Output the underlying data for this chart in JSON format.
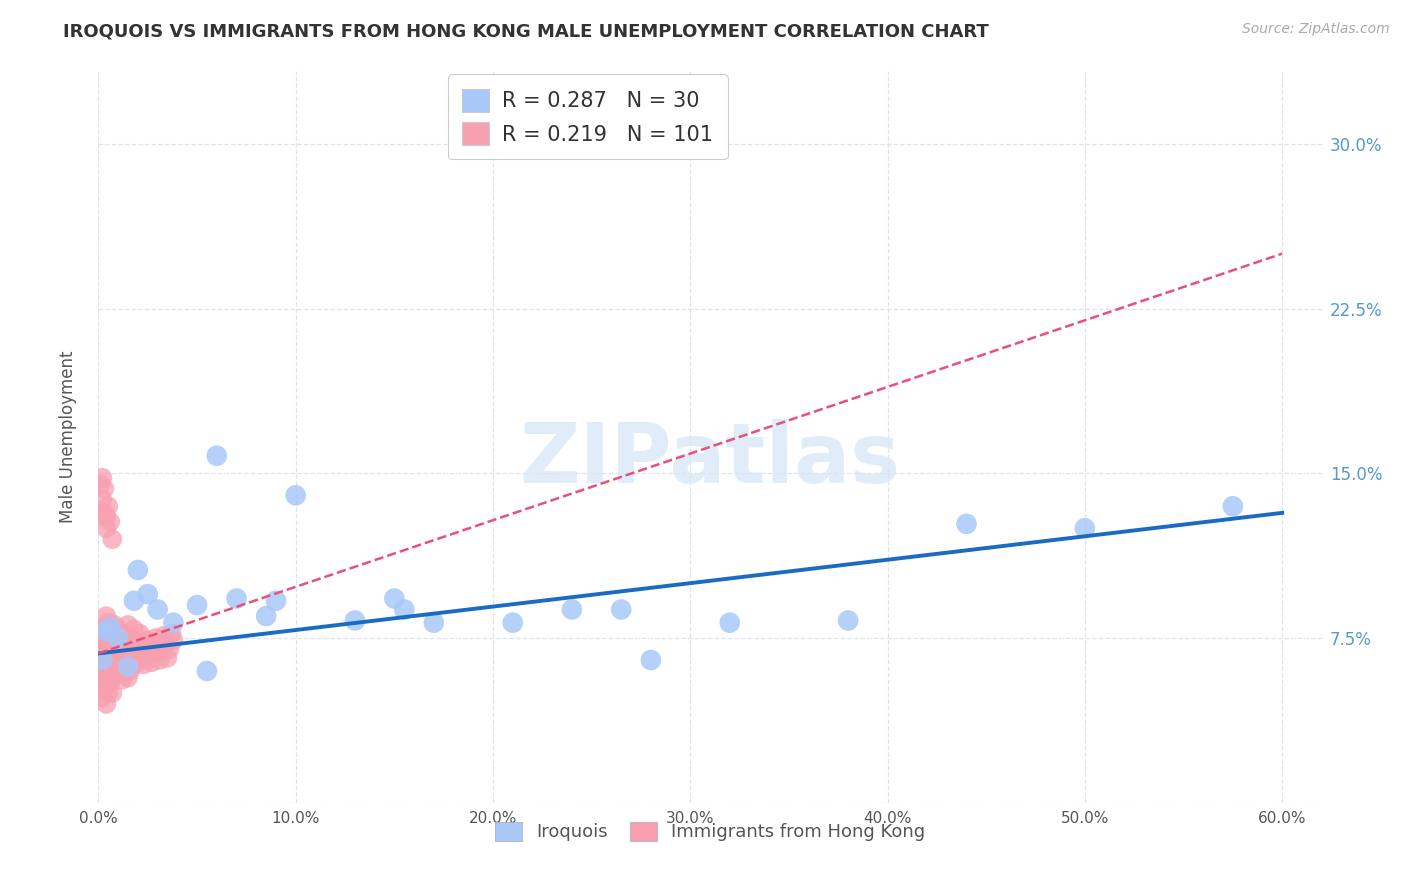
{
  "title": "IROQUOIS VS IMMIGRANTS FROM HONG KONG MALE UNEMPLOYMENT CORRELATION CHART",
  "source": "Source: ZipAtlas.com",
  "ylabel": "Male Unemployment",
  "iroquois_R": 0.287,
  "iroquois_N": 30,
  "hk_R": 0.219,
  "hk_N": 101,
  "iroquois_color": "#a8c8f8",
  "hk_color": "#f8a0b0",
  "iroquois_line_color": "#1a6bc4",
  "hk_line_color": "#e8507a",
  "watermark_color": "#c8dff5",
  "background_color": "#ffffff",
  "grid_color": "#dde4ee",
  "irq_x": [
    0.002,
    0.004,
    0.006,
    0.01,
    0.015,
    0.018,
    0.025,
    0.03,
    0.038,
    0.05,
    0.06,
    0.07,
    0.085,
    0.1,
    0.13,
    0.15,
    0.17,
    0.21,
    0.24,
    0.28,
    0.155,
    0.32,
    0.38,
    0.44,
    0.5,
    0.575,
    0.02,
    0.09,
    0.265,
    0.055
  ],
  "irq_y": [
    0.065,
    0.078,
    0.08,
    0.075,
    0.062,
    0.092,
    0.095,
    0.088,
    0.082,
    0.09,
    0.158,
    0.093,
    0.085,
    0.14,
    0.083,
    0.093,
    0.082,
    0.082,
    0.088,
    0.065,
    0.088,
    0.082,
    0.083,
    0.127,
    0.125,
    0.135,
    0.106,
    0.092,
    0.088,
    0.06
  ],
  "hk_x_tight": [
    0.001,
    0.001,
    0.001,
    0.002,
    0.002,
    0.002,
    0.003,
    0.003,
    0.003,
    0.003,
    0.004,
    0.004,
    0.004,
    0.004,
    0.005,
    0.005,
    0.005,
    0.005,
    0.006,
    0.006,
    0.006,
    0.007,
    0.007,
    0.007,
    0.008,
    0.008,
    0.008,
    0.009,
    0.009,
    0.01,
    0.01,
    0.01,
    0.011,
    0.011,
    0.012,
    0.012,
    0.013,
    0.013,
    0.014,
    0.015,
    0.015,
    0.016,
    0.016,
    0.017,
    0.018,
    0.018,
    0.019,
    0.02,
    0.02,
    0.021,
    0.002,
    0.003,
    0.004,
    0.005,
    0.006,
    0.007,
    0.001,
    0.002,
    0.003,
    0.004,
    0.001,
    0.002,
    0.002,
    0.003,
    0.003,
    0.004,
    0.005,
    0.005,
    0.006,
    0.007,
    0.008,
    0.009,
    0.01,
    0.011,
    0.012,
    0.013,
    0.014,
    0.015,
    0.016,
    0.017,
    0.018,
    0.019,
    0.02,
    0.021,
    0.022,
    0.023,
    0.024,
    0.025,
    0.026,
    0.027,
    0.028,
    0.029,
    0.03,
    0.031,
    0.032,
    0.033,
    0.034,
    0.035,
    0.036,
    0.037,
    0.038
  ],
  "hk_y_tight": [
    0.072,
    0.068,
    0.065,
    0.078,
    0.065,
    0.07,
    0.075,
    0.06,
    0.072,
    0.068,
    0.073,
    0.08,
    0.085,
    0.063,
    0.055,
    0.075,
    0.082,
    0.058,
    0.073,
    0.069,
    0.064,
    0.071,
    0.067,
    0.076,
    0.081,
    0.07,
    0.065,
    0.06,
    0.074,
    0.079,
    0.068,
    0.063,
    0.071,
    0.066,
    0.077,
    0.072,
    0.067,
    0.062,
    0.076,
    0.081,
    0.07,
    0.065,
    0.06,
    0.074,
    0.079,
    0.068,
    0.063,
    0.071,
    0.066,
    0.077,
    0.138,
    0.143,
    0.13,
    0.135,
    0.128,
    0.12,
    0.145,
    0.148,
    0.132,
    0.125,
    0.06,
    0.055,
    0.048,
    0.052,
    0.058,
    0.045,
    0.05,
    0.062,
    0.055,
    0.05,
    0.068,
    0.065,
    0.062,
    0.059,
    0.056,
    0.063,
    0.06,
    0.057,
    0.07,
    0.067,
    0.072,
    0.069,
    0.066,
    0.073,
    0.07,
    0.063,
    0.067,
    0.074,
    0.071,
    0.064,
    0.068,
    0.075,
    0.072,
    0.065,
    0.069,
    0.076,
    0.073,
    0.066,
    0.07,
    0.077,
    0.074
  ],
  "irq_line_x": [
    0.0,
    0.6
  ],
  "irq_line_y": [
    0.068,
    0.132
  ],
  "hk_line_x": [
    0.0,
    0.6
  ],
  "hk_line_y": [
    0.068,
    0.25
  ],
  "xlim": [
    0.0,
    0.62
  ],
  "ylim": [
    0.0,
    0.333
  ],
  "xticks": [
    0.0,
    0.1,
    0.2,
    0.3,
    0.4,
    0.5,
    0.6
  ],
  "xticklabels": [
    "0.0%",
    "10.0%",
    "20.0%",
    "30.0%",
    "40.0%",
    "50.0%",
    "60.0%"
  ],
  "yticks": [
    0.075,
    0.15,
    0.225,
    0.3
  ],
  "yticklabels": [
    "7.5%",
    "15.0%",
    "22.5%",
    "30.0%"
  ],
  "tick_color": "#5599cc",
  "title_fontsize": 13,
  "source_fontsize": 10,
  "watermark": "ZIPatlas"
}
